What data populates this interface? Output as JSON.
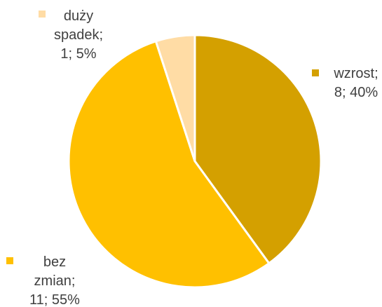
{
  "chart_data": {
    "type": "pie",
    "values": [
      8,
      11,
      1
    ],
    "value_labels": [
      "wzrost; 8; 40%",
      "bez zmian; 11; 55%",
      "duży spadek; 1; 5%"
    ],
    "colors": [
      "#d4a000",
      "#ffc000",
      "#ffdca5"
    ]
  }
}
